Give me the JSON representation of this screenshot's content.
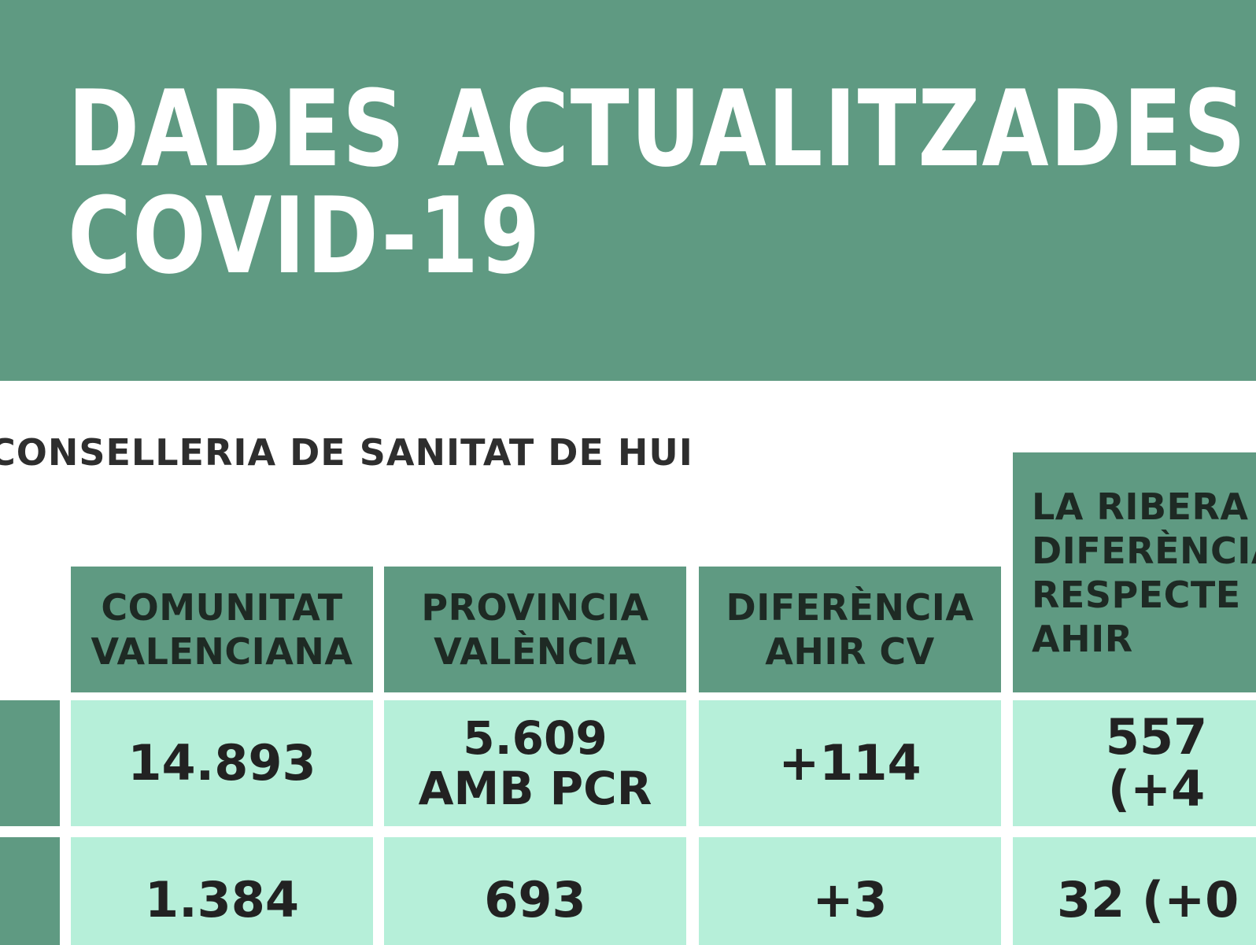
{
  "banner": {
    "title_line1": "DADES ACTUALITZADES",
    "title_line2": "COVID-19",
    "color": "#5f9a82"
  },
  "source": {
    "text": "CONSELLERIA DE SANITAT DE HUI",
    "fragment": ")"
  },
  "table": {
    "headers": [
      "COMUNITAT\nVALENCIANA",
      "PROVINCIA\nVALÈNCIA",
      "DIFERÈNCIA\nAHIR CV",
      "LA RIBERA\nDIFERÈNCIA\nRESPECTE\nAHIR"
    ],
    "rows": [
      [
        "14.893",
        "5.609\nAMB PCR",
        "+114",
        "557 (+4"
      ],
      [
        "1.384",
        "693",
        "+3",
        "32 (+0"
      ]
    ],
    "header_color": "#5f9a82",
    "cell_color": "#b6efd9"
  }
}
